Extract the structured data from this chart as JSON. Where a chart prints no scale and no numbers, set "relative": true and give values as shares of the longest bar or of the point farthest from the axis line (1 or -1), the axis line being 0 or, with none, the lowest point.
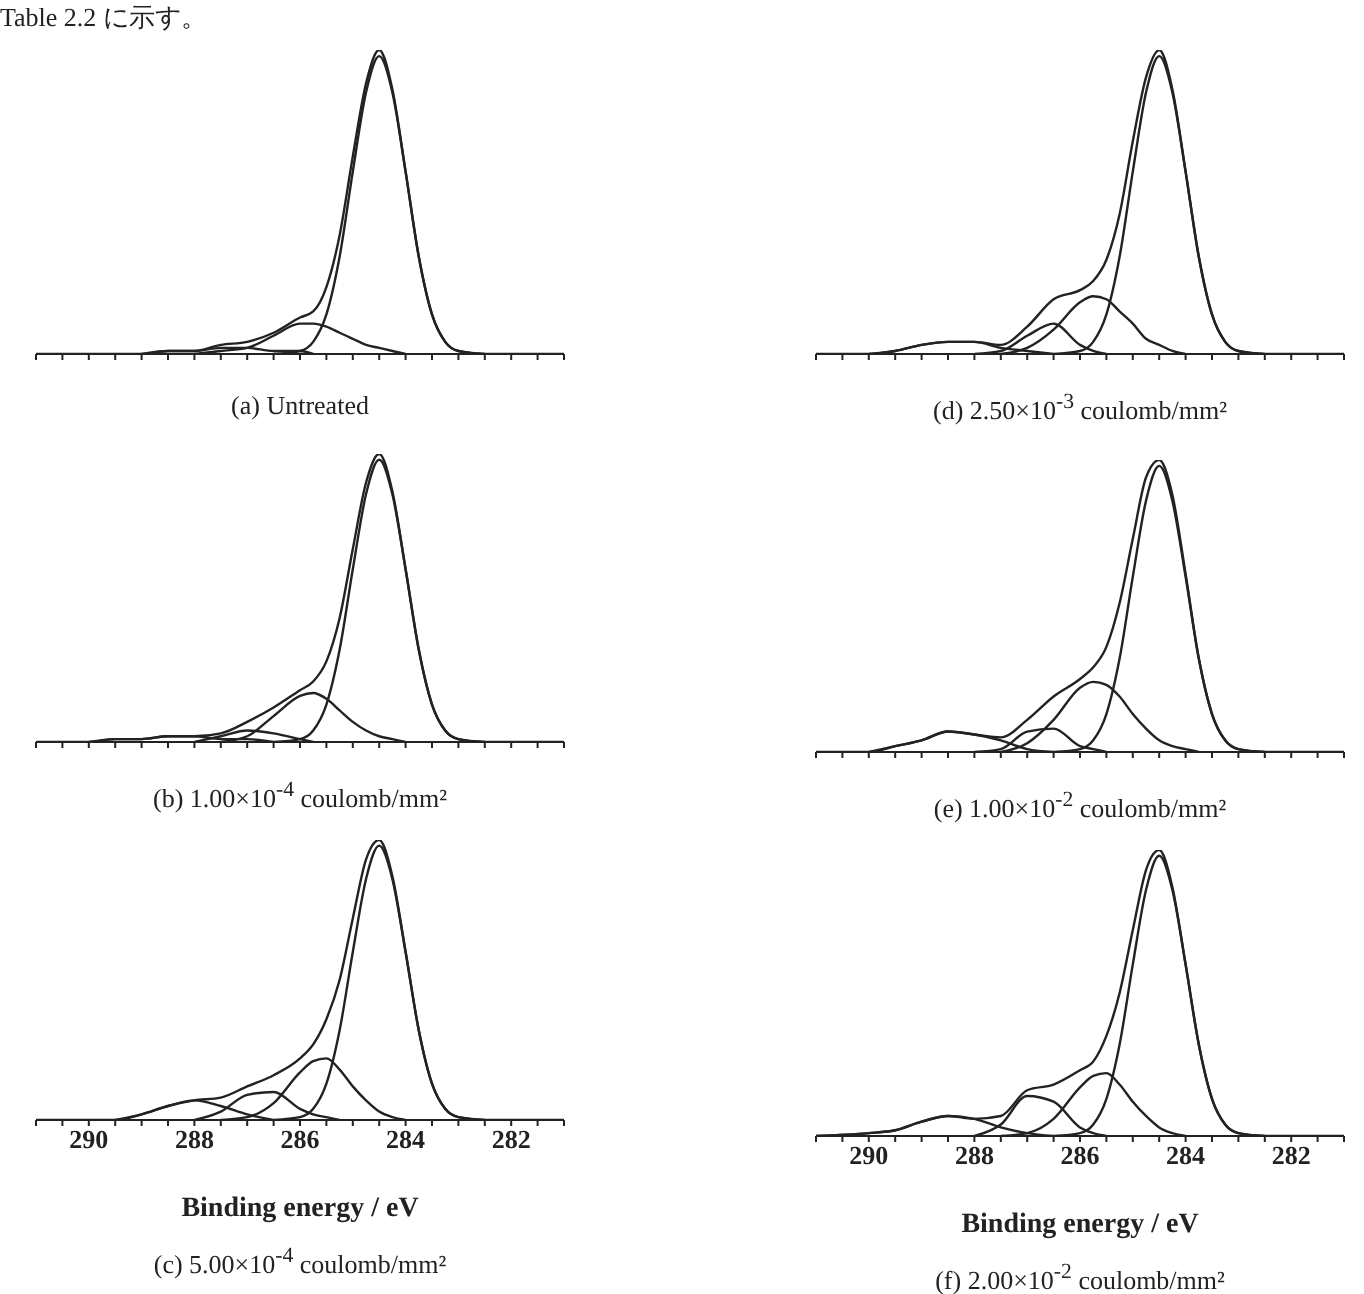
{
  "chart_data": [
    {
      "type": "line",
      "title": "(a) Untreated",
      "annotations": [
        "Table 2.2 に示す。"
      ],
      "relative": true,
      "tick_labels": false,
      "xlim": [
        291,
        281
      ],
      "xticks": [
        {
          "value": 291,
          "label": null
        },
        {
          "value": 290.5,
          "label": null
        },
        290,
        {
          "value": 289.5,
          "label": null
        },
        {
          "value": 289,
          "label": null
        },
        {
          "value": 288.5,
          "label": null
        },
        288,
        {
          "value": 287.5,
          "label": null
        },
        {
          "value": 287,
          "label": null
        },
        {
          "value": 286.5,
          "label": null
        },
        286,
        {
          "value": 285.5,
          "label": null
        },
        {
          "value": 285,
          "label": null
        },
        {
          "value": 284.5,
          "label": null
        },
        284,
        {
          "value": 283.5,
          "label": null
        },
        {
          "value": 283,
          "label": null
        },
        {
          "value": 282.5,
          "label": null
        },
        282,
        {
          "value": 281.5,
          "label": null
        },
        {
          "value": 281,
          "label": null
        }
      ],
      "x": [
        291,
        290,
        289.5,
        289,
        288.5,
        288,
        287.5,
        287,
        286.5,
        286,
        285.75,
        285.5,
        285.25,
        285,
        284.75,
        284.5,
        284.25,
        284,
        283.75,
        283.5,
        283.25,
        283,
        282.5,
        282,
        281
      ],
      "series": [
        {
          "color": "#222222",
          "values": [
            0,
            0,
            0,
            0,
            0.01,
            0.01,
            0.03,
            0.04,
            0.07,
            0.12,
            0.14,
            0.22,
            0.39,
            0.65,
            0.89,
            1,
            0.87,
            0.6,
            0.32,
            0.13,
            0.04,
            0.01,
            0,
            0,
            0
          ]
        },
        {
          "color": "#222222",
          "values": [
            null,
            null,
            null,
            null,
            null,
            null,
            null,
            null,
            0,
            0.01,
            0.04,
            0.13,
            0.32,
            0.6,
            0.86,
            0.98,
            0.86,
            0.6,
            0.32,
            0.13,
            0.04,
            0.01,
            0,
            null,
            null
          ]
        },
        {
          "color": "#222222",
          "values": [
            null,
            null,
            null,
            null,
            null,
            0,
            0.01,
            0.02,
            0.06,
            0.1,
            0.1,
            0.09,
            0.07,
            0.05,
            0.03,
            0.02,
            0.01,
            0,
            null,
            null,
            null,
            null,
            null,
            null,
            null
          ]
        },
        {
          "color": "#222222",
          "values": [
            null,
            null,
            null,
            0,
            0.01,
            0.01,
            0.02,
            0.02,
            0.01,
            0.01,
            0,
            null,
            null,
            null,
            null,
            null,
            null,
            null,
            null,
            null,
            null,
            null,
            null,
            null,
            null
          ]
        }
      ]
    },
    {
      "type": "line",
      "title": "(b) 1.00×10$^{-4}$ coulomb/mm²",
      "relative": true,
      "tick_labels": false,
      "xlim": [
        291,
        281
      ],
      "xticks": [
        {
          "value": 291,
          "label": null
        },
        {
          "value": 290.5,
          "label": null
        },
        290,
        {
          "value": 289.5,
          "label": null
        },
        {
          "value": 289,
          "label": null
        },
        {
          "value": 288.5,
          "label": null
        },
        288,
        {
          "value": 287.5,
          "label": null
        },
        {
          "value": 287,
          "label": null
        },
        {
          "value": 286.5,
          "label": null
        },
        286,
        {
          "value": 285.5,
          "label": null
        },
        {
          "value": 285,
          "label": null
        },
        {
          "value": 284.5,
          "label": null
        },
        284,
        {
          "value": 283.5,
          "label": null
        },
        {
          "value": 283,
          "label": null
        },
        {
          "value": 282.5,
          "label": null
        },
        282,
        {
          "value": 281.5,
          "label": null
        },
        {
          "value": 281,
          "label": null
        }
      ],
      "x": [
        291,
        290,
        289.5,
        289,
        288.5,
        288,
        287.5,
        287,
        286.5,
        286,
        285.75,
        285.5,
        285.25,
        285,
        284.75,
        284.5,
        284.25,
        284,
        283.75,
        283.5,
        283.25,
        283,
        282.5,
        282,
        281
      ],
      "series": [
        {
          "color": "#222222",
          "values": [
            0,
            0,
            0.01,
            0.01,
            0.02,
            0.02,
            0.03,
            0.07,
            0.12,
            0.18,
            0.21,
            0.28,
            0.43,
            0.67,
            0.9,
            1,
            0.87,
            0.6,
            0.32,
            0.13,
            0.04,
            0.01,
            0,
            0,
            0
          ]
        },
        {
          "color": "#222222",
          "values": [
            null,
            null,
            null,
            null,
            null,
            null,
            null,
            null,
            0,
            0.01,
            0.04,
            0.13,
            0.32,
            0.6,
            0.86,
            0.98,
            0.86,
            0.6,
            0.32,
            0.13,
            0.04,
            0.01,
            0,
            null,
            null
          ]
        },
        {
          "color": "#222222",
          "values": [
            null,
            null,
            null,
            null,
            null,
            null,
            0,
            0.02,
            0.09,
            0.16,
            0.17,
            0.15,
            0.11,
            0.07,
            0.04,
            0.02,
            0.01,
            0,
            null,
            null,
            null,
            null,
            null,
            null,
            null
          ]
        },
        {
          "color": "#222222",
          "values": [
            null,
            null,
            null,
            null,
            null,
            0,
            0.02,
            0.04,
            0.03,
            0.01,
            0,
            null,
            null,
            null,
            null,
            null,
            null,
            null,
            null,
            null,
            null,
            null,
            null,
            null,
            null
          ]
        },
        {
          "color": "#222222",
          "values": [
            null,
            0,
            0.01,
            0.01,
            0.02,
            0.02,
            0.01,
            0.01,
            0,
            null,
            null,
            null,
            null,
            null,
            null,
            null,
            null,
            null,
            null,
            null,
            null,
            null,
            null,
            null,
            null
          ]
        }
      ]
    },
    {
      "type": "line",
      "title": "(c) 5.00×10$^{-4}$ coulomb/mm²",
      "xlabel": "Binding energy / eV",
      "relative": true,
      "tick_labels": "x",
      "xlim": [
        291,
        281
      ],
      "xticks": [
        {
          "value": 291,
          "label": null
        },
        {
          "value": 290.5,
          "label": null
        },
        290,
        {
          "value": 289.5,
          "label": null
        },
        {
          "value": 289,
          "label": null
        },
        {
          "value": 288.5,
          "label": null
        },
        288,
        {
          "value": 287.5,
          "label": null
        },
        {
          "value": 287,
          "label": null
        },
        {
          "value": 286.5,
          "label": null
        },
        286,
        {
          "value": 285.5,
          "label": null
        },
        {
          "value": 285,
          "label": null
        },
        {
          "value": 284.5,
          "label": null
        },
        284,
        {
          "value": 283.5,
          "label": null
        },
        {
          "value": 283,
          "label": null
        },
        {
          "value": 282.5,
          "label": null
        },
        282,
        {
          "value": 281.5,
          "label": null
        },
        {
          "value": 281,
          "label": null
        }
      ],
      "x": [
        291,
        290,
        289.5,
        289,
        288.5,
        288,
        287.5,
        287,
        286.5,
        286,
        285.75,
        285.5,
        285.25,
        285,
        284.75,
        284.5,
        284.25,
        284,
        283.75,
        283.5,
        283.25,
        283,
        282.5,
        282,
        281
      ],
      "series": [
        {
          "color": "#222222",
          "values": [
            0,
            0,
            0,
            0.02,
            0.05,
            0.07,
            0.08,
            0.12,
            0.16,
            0.22,
            0.27,
            0.36,
            0.5,
            0.72,
            0.93,
            1,
            0.87,
            0.6,
            0.32,
            0.13,
            0.04,
            0.01,
            0,
            0,
            0
          ]
        },
        {
          "color": "#222222",
          "values": [
            null,
            null,
            null,
            null,
            null,
            null,
            null,
            null,
            0,
            0.01,
            0.04,
            0.13,
            0.32,
            0.6,
            0.86,
            0.98,
            0.86,
            0.6,
            0.32,
            0.13,
            0.04,
            0.01,
            0,
            null,
            null
          ]
        },
        {
          "color": "#222222",
          "values": [
            null,
            null,
            null,
            null,
            null,
            null,
            0,
            0.01,
            0.06,
            0.17,
            0.21,
            0.22,
            0.18,
            0.12,
            0.07,
            0.03,
            0.01,
            0,
            null,
            null,
            null,
            null,
            null,
            null,
            null
          ]
        },
        {
          "color": "#222222",
          "values": [
            null,
            null,
            null,
            null,
            null,
            0,
            0.03,
            0.09,
            0.1,
            0.04,
            0.02,
            0.01,
            0,
            null,
            null,
            null,
            null,
            null,
            null,
            null,
            null,
            null,
            null,
            null,
            null
          ]
        },
        {
          "color": "#222222",
          "values": [
            null,
            null,
            0,
            0.02,
            0.05,
            0.07,
            0.05,
            0.02,
            0,
            null,
            null,
            null,
            null,
            null,
            null,
            null,
            null,
            null,
            null,
            null,
            null,
            null,
            null,
            null,
            null
          ]
        }
      ]
    },
    {
      "type": "line",
      "title": "(d) 2.50×10$^{-3}$ coulomb/mm²",
      "relative": true,
      "tick_labels": false,
      "xlim": [
        291,
        281
      ],
      "xticks": [
        {
          "value": 291,
          "label": null
        },
        {
          "value": 290.5,
          "label": null
        },
        290,
        {
          "value": 289.5,
          "label": null
        },
        {
          "value": 289,
          "label": null
        },
        {
          "value": 288.5,
          "label": null
        },
        288,
        {
          "value": 287.5,
          "label": null
        },
        {
          "value": 287,
          "label": null
        },
        {
          "value": 286.5,
          "label": null
        },
        286,
        {
          "value": 285.5,
          "label": null
        },
        {
          "value": 285,
          "label": null
        },
        {
          "value": 284.5,
          "label": null
        },
        284,
        {
          "value": 283.5,
          "label": null
        },
        {
          "value": 283,
          "label": null
        },
        {
          "value": 282.5,
          "label": null
        },
        282,
        {
          "value": 281.5,
          "label": null
        },
        {
          "value": 281,
          "label": null
        }
      ],
      "x": [
        291,
        290,
        289.5,
        289,
        288.5,
        288,
        287.5,
        287,
        286.5,
        286,
        285.75,
        285.5,
        285.25,
        285,
        284.75,
        284.5,
        284.25,
        284,
        283.75,
        283.5,
        283.25,
        283,
        282.5,
        282,
        281
      ],
      "series": [
        {
          "color": "#222222",
          "values": [
            0,
            0,
            0.01,
            0.03,
            0.04,
            0.04,
            0.03,
            0.09,
            0.18,
            0.21,
            0.24,
            0.31,
            0.46,
            0.7,
            0.91,
            1,
            0.87,
            0.6,
            0.32,
            0.13,
            0.04,
            0.01,
            0,
            0,
            0
          ]
        },
        {
          "color": "#222222",
          "values": [
            null,
            null,
            null,
            null,
            null,
            null,
            null,
            null,
            0,
            0.01,
            0.04,
            0.13,
            0.32,
            0.6,
            0.86,
            0.98,
            0.86,
            0.6,
            0.32,
            0.13,
            0.04,
            0.01,
            0,
            null,
            null
          ]
        },
        {
          "color": "#222222",
          "values": [
            null,
            null,
            null,
            null,
            null,
            null,
            0,
            0.02,
            0.08,
            0.17,
            0.19,
            0.18,
            0.14,
            0.1,
            0.05,
            0.03,
            0.01,
            0,
            null,
            null,
            null,
            null,
            null,
            null,
            null
          ]
        },
        {
          "color": "#222222",
          "values": [
            null,
            null,
            null,
            null,
            null,
            0,
            0.01,
            0.06,
            0.1,
            0.03,
            0.01,
            0,
            null,
            null,
            null,
            null,
            null,
            null,
            null,
            null,
            null,
            null,
            null,
            null,
            null
          ]
        },
        {
          "color": "#222222",
          "values": [
            null,
            0,
            0.01,
            0.03,
            0.04,
            0.04,
            0.02,
            0.01,
            0,
            null,
            null,
            null,
            null,
            null,
            null,
            null,
            null,
            null,
            null,
            null,
            null,
            null,
            null,
            null,
            null
          ]
        }
      ]
    },
    {
      "type": "line",
      "title": "(e) 1.00×10$^{-2}$ coulomb/mm²",
      "relative": true,
      "tick_labels": false,
      "xlim": [
        291,
        281
      ],
      "xticks": [
        {
          "value": 291,
          "label": null
        },
        {
          "value": 290.5,
          "label": null
        },
        290,
        {
          "value": 289.5,
          "label": null
        },
        {
          "value": 289,
          "label": null
        },
        {
          "value": 288.5,
          "label": null
        },
        288,
        {
          "value": 287.5,
          "label": null
        },
        {
          "value": 287,
          "label": null
        },
        {
          "value": 286.5,
          "label": null
        },
        286,
        {
          "value": 285.5,
          "label": null
        },
        {
          "value": 285,
          "label": null
        },
        {
          "value": 284.5,
          "label": null
        },
        284,
        {
          "value": 283.5,
          "label": null
        },
        {
          "value": 283,
          "label": null
        },
        {
          "value": 282.5,
          "label": null
        },
        282,
        {
          "value": 281.5,
          "label": null
        },
        {
          "value": 281,
          "label": null
        }
      ],
      "x": [
        291,
        290,
        289.5,
        289,
        288.5,
        288,
        287.5,
        287,
        286.5,
        286,
        285.75,
        285.5,
        285.25,
        285,
        284.75,
        284.5,
        284.25,
        284,
        283.75,
        283.5,
        283.25,
        283,
        282.5,
        282,
        281
      ],
      "series": [
        {
          "color": "#222222",
          "values": [
            0,
            0,
            0.02,
            0.04,
            0.07,
            0.06,
            0.05,
            0.11,
            0.19,
            0.25,
            0.29,
            0.36,
            0.51,
            0.73,
            0.94,
            1,
            0.88,
            0.61,
            0.32,
            0.13,
            0.04,
            0.01,
            0,
            0,
            0
          ]
        },
        {
          "color": "#222222",
          "values": [
            null,
            null,
            null,
            null,
            null,
            null,
            null,
            null,
            0,
            0.01,
            0.04,
            0.13,
            0.32,
            0.6,
            0.86,
            0.98,
            0.86,
            0.6,
            0.32,
            0.13,
            0.04,
            0.01,
            0,
            null,
            null
          ]
        },
        {
          "color": "#222222",
          "values": [
            null,
            null,
            null,
            null,
            null,
            null,
            0,
            0.03,
            0.11,
            0.22,
            0.24,
            0.23,
            0.19,
            0.13,
            0.08,
            0.04,
            0.02,
            0.01,
            0,
            null,
            null,
            null,
            null,
            null,
            null
          ]
        },
        {
          "color": "#222222",
          "values": [
            null,
            null,
            null,
            null,
            null,
            0,
            0.01,
            0.07,
            0.08,
            0.02,
            0.01,
            0,
            null,
            null,
            null,
            null,
            null,
            null,
            null,
            null,
            null,
            null,
            null,
            null,
            null
          ]
        },
        {
          "color": "#222222",
          "values": [
            null,
            0,
            0.02,
            0.04,
            0.07,
            0.06,
            0.04,
            0.01,
            0,
            null,
            null,
            null,
            null,
            null,
            null,
            null,
            null,
            null,
            null,
            null,
            null,
            null,
            null,
            null,
            null
          ]
        }
      ]
    },
    {
      "type": "line",
      "title": "(f) 2.00×10$^{-2}$ coulomb/mm²",
      "xlabel": "Binding energy / eV",
      "relative": true,
      "tick_labels": "x",
      "xlim": [
        291,
        281
      ],
      "xticks": [
        {
          "value": 291,
          "label": null
        },
        {
          "value": 290.5,
          "label": null
        },
        290,
        {
          "value": 289.5,
          "label": null
        },
        {
          "value": 289,
          "label": null
        },
        {
          "value": 288.5,
          "label": null
        },
        288,
        {
          "value": 287.5,
          "label": null
        },
        {
          "value": 287,
          "label": null
        },
        {
          "value": 286.5,
          "label": null
        },
        286,
        {
          "value": 285.5,
          "label": null
        },
        {
          "value": 285,
          "label": null
        },
        {
          "value": 284.5,
          "label": null
        },
        284,
        {
          "value": 283.5,
          "label": null
        },
        {
          "value": 283,
          "label": null
        },
        {
          "value": 282.5,
          "label": null
        },
        282,
        {
          "value": 281.5,
          "label": null
        },
        {
          "value": 281,
          "label": null
        }
      ],
      "x": [
        291,
        290,
        289.5,
        289,
        288.5,
        288,
        287.5,
        287,
        286.5,
        286,
        285.75,
        285.5,
        285.25,
        285,
        284.75,
        284.5,
        284.25,
        284,
        283.75,
        283.5,
        283.25,
        283,
        282.5,
        282,
        281
      ],
      "series": [
        {
          "color": "#222222",
          "values": [
            0,
            0.01,
            0.02,
            0.05,
            0.07,
            0.06,
            0.07,
            0.16,
            0.18,
            0.23,
            0.26,
            0.35,
            0.5,
            0.72,
            0.93,
            1,
            0.87,
            0.6,
            0.32,
            0.13,
            0.04,
            0.01,
            0,
            0,
            0
          ]
        },
        {
          "color": "#222222",
          "values": [
            null,
            null,
            null,
            null,
            null,
            null,
            null,
            null,
            0,
            0.01,
            0.04,
            0.13,
            0.32,
            0.6,
            0.86,
            0.98,
            0.86,
            0.6,
            0.32,
            0.13,
            0.04,
            0.01,
            0,
            null,
            null
          ]
        },
        {
          "color": "#222222",
          "values": [
            null,
            null,
            null,
            null,
            null,
            null,
            0,
            0.01,
            0.06,
            0.17,
            0.21,
            0.22,
            0.18,
            0.12,
            0.07,
            0.03,
            0.01,
            0,
            null,
            null,
            null,
            null,
            null,
            null,
            null
          ]
        },
        {
          "color": "#222222",
          "values": [
            null,
            null,
            null,
            null,
            null,
            0,
            0.04,
            0.14,
            0.12,
            0.03,
            0.01,
            0,
            null,
            null,
            null,
            null,
            null,
            null,
            null,
            null,
            null,
            null,
            null,
            null,
            null
          ]
        },
        {
          "color": "#222222",
          "values": [
            0,
            0.01,
            0.02,
            0.05,
            0.07,
            0.06,
            0.03,
            0.01,
            0,
            null,
            null,
            null,
            null,
            null,
            null,
            null,
            null,
            null,
            null,
            null,
            null,
            null,
            null,
            null,
            null
          ]
        }
      ]
    }
  ]
}
